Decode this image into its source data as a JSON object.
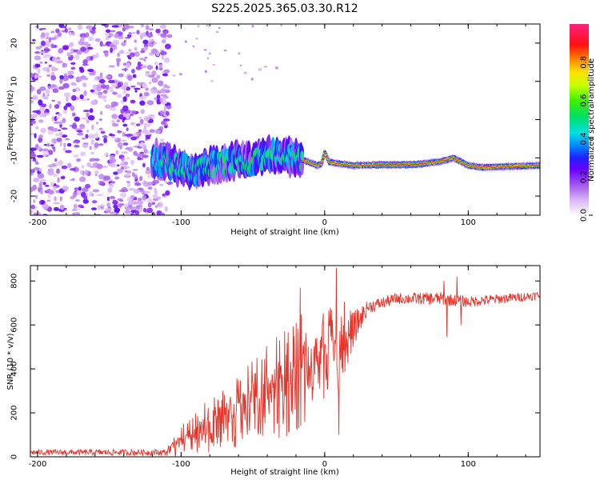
{
  "title": "S225.2025.365.03.30.R12",
  "chart_data": [
    {
      "type": "heatmap",
      "name": "spectrogram",
      "xlabel": "Height of straight line (km)",
      "ylabel": "Frequency (Hz)",
      "xlim": [
        -205,
        150
      ],
      "ylim": [
        -25,
        25
      ],
      "xticks": [
        -200,
        -100,
        0,
        100
      ],
      "yticks": [
        -20,
        -10,
        0,
        10,
        20
      ],
      "colorbar": {
        "label": "Normalized spectral amplitude",
        "range": [
          0,
          1
        ],
        "ticks": [
          "0.0",
          "0.2",
          "0.4",
          "0.6",
          "0.8"
        ],
        "tick_values": [
          0,
          0.2,
          0.4,
          0.6,
          0.8
        ],
        "stops": [
          {
            "v": 0.0,
            "color": "#ffffff"
          },
          {
            "v": 0.08,
            "color": "#d9b3f5"
          },
          {
            "v": 0.16,
            "color": "#a055ee"
          },
          {
            "v": 0.24,
            "color": "#6a00ff"
          },
          {
            "v": 0.3,
            "color": "#2020ff"
          },
          {
            "v": 0.37,
            "color": "#0090ff"
          },
          {
            "v": 0.43,
            "color": "#00e0e0"
          },
          {
            "v": 0.52,
            "color": "#00e060"
          },
          {
            "v": 0.6,
            "color": "#40f000"
          },
          {
            "v": 0.68,
            "color": "#c8ff00"
          },
          {
            "v": 0.75,
            "color": "#ffe000"
          },
          {
            "v": 0.82,
            "color": "#ff8000"
          },
          {
            "v": 0.89,
            "color": "#ff1010"
          },
          {
            "v": 1.0,
            "color": "#ff2080"
          }
        ]
      },
      "line_track": [
        [
          -120,
          -10.0
        ],
        [
          -110,
          -11.0
        ],
        [
          -100,
          -12.5
        ],
        [
          -90,
          -14.0
        ],
        [
          -80,
          -12.0
        ],
        [
          -70,
          -11.0
        ],
        [
          -60,
          -10.5
        ],
        [
          -50,
          -11.0
        ],
        [
          -40,
          -9.0
        ],
        [
          -30,
          -9.5
        ],
        [
          -20,
          -10.0
        ],
        [
          -12,
          -11.0
        ],
        [
          -5,
          -12.0
        ],
        [
          -2,
          -11.5
        ],
        [
          0,
          -8.5
        ],
        [
          3,
          -11.0
        ],
        [
          10,
          -11.5
        ],
        [
          20,
          -12.0
        ],
        [
          40,
          -11.8
        ],
        [
          60,
          -11.8
        ],
        [
          70,
          -11.5
        ],
        [
          80,
          -11.0
        ],
        [
          90,
          -10.0
        ],
        [
          100,
          -12.0
        ],
        [
          110,
          -12.5
        ],
        [
          150,
          -12.0
        ]
      ],
      "noise_region": [
        -205,
        -110
      ]
    },
    {
      "type": "line",
      "name": "snr",
      "xlabel": "Height of straight line (km)",
      "ylabel": "SNR (10 * v/v)",
      "xlim": [
        -205,
        150
      ],
      "ylim": [
        0,
        870
      ],
      "xticks": [
        -200,
        -100,
        0,
        100
      ],
      "yticks": [
        0,
        200,
        400,
        600,
        800
      ],
      "color": "#e8342a",
      "envelope": [
        {
          "x": -205,
          "y": 20,
          "amp": 12
        },
        {
          "x": -110,
          "y": 20,
          "amp": 15
        },
        {
          "x": -100,
          "y": 50,
          "amp": 50
        },
        {
          "x": -80,
          "y": 110,
          "amp": 90
        },
        {
          "x": -60,
          "y": 160,
          "amp": 120
        },
        {
          "x": -40,
          "y": 220,
          "amp": 160
        },
        {
          "x": -20,
          "y": 300,
          "amp": 190
        },
        {
          "x": 0,
          "y": 400,
          "amp": 160
        },
        {
          "x": 10,
          "y": 450,
          "amp": 150
        },
        {
          "x": 20,
          "y": 580,
          "amp": 80
        },
        {
          "x": 30,
          "y": 680,
          "amp": 30
        },
        {
          "x": 50,
          "y": 720,
          "amp": 25
        },
        {
          "x": 80,
          "y": 720,
          "amp": 30
        },
        {
          "x": 100,
          "y": 705,
          "amp": 25
        },
        {
          "x": 150,
          "y": 735,
          "amp": 20
        }
      ],
      "spikes": [
        {
          "x": -17,
          "y": 770
        },
        {
          "x": 8,
          "y": 860
        },
        {
          "x": 10,
          "y": 100
        },
        {
          "x": 83,
          "y": 800
        },
        {
          "x": 85,
          "y": 545
        },
        {
          "x": 92,
          "y": 820
        },
        {
          "x": 95,
          "y": 600
        }
      ]
    }
  ]
}
